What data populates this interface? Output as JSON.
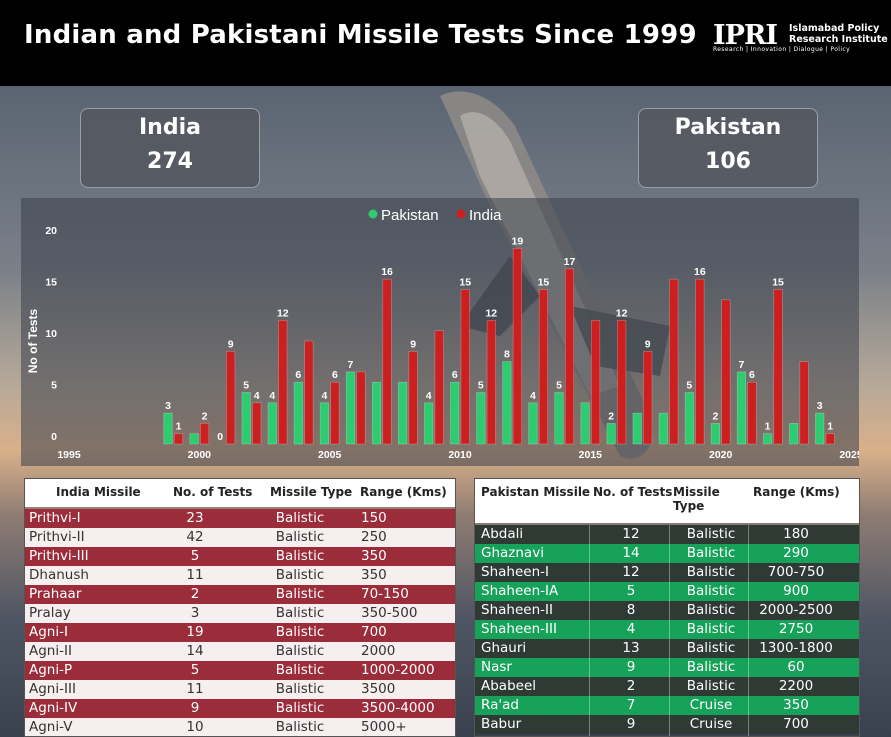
{
  "header": {
    "title": "Indian and Pakistani Missile Tests Since 1999",
    "logo_mark": "IPRI",
    "logo_name": "Islamabad Policy\nResearch Institute",
    "logo_tagline": "Research | Innovation | Dialogue | Policy"
  },
  "kpis": {
    "india": {
      "label": "India",
      "value": "274"
    },
    "pakistan": {
      "label": "Pakistan",
      "value": "106"
    }
  },
  "colors": {
    "pakistan": "#2ecc71",
    "india": "#cc1f1f",
    "india_row": "#9b2d3b",
    "pakistan_row": "#17a25a"
  },
  "chart_data": {
    "type": "bar",
    "title": "",
    "ylabel": "No of Tests",
    "xlabel": "",
    "x_ticks": [
      "1995",
      "2000",
      "2005",
      "2010",
      "2015",
      "2020",
      "2025"
    ],
    "y_ticks": [
      "0",
      "5",
      "10",
      "15",
      "20"
    ],
    "ylim": [
      0,
      20
    ],
    "xlim": [
      1995,
      2025
    ],
    "legend": "top-center",
    "years": [
      1999,
      2000,
      2001,
      2002,
      2003,
      2004,
      2005,
      2006,
      2007,
      2008,
      2009,
      2010,
      2011,
      2012,
      2013,
      2014,
      2015,
      2016,
      2017,
      2018,
      2019,
      2020,
      2021,
      2022,
      2023,
      2024
    ],
    "series": [
      {
        "name": "Pakistan",
        "values": [
          3,
          1,
          0,
          5,
          4,
          6,
          4,
          7,
          6,
          6,
          4,
          6,
          5,
          8,
          4,
          5,
          4,
          2,
          3,
          3,
          5,
          2,
          7,
          1,
          2,
          3
        ],
        "labels": [
          "3",
          "",
          "0",
          "5",
          "4",
          "6",
          "4",
          "7",
          "",
          "",
          "4",
          "6",
          "5",
          "8",
          "4",
          "5",
          "",
          "2",
          "",
          "",
          "5",
          "2",
          "7",
          "1",
          "",
          "3"
        ]
      },
      {
        "name": "India",
        "values": [
          1,
          2,
          9,
          4,
          12,
          10,
          6,
          7,
          16,
          9,
          11,
          15,
          12,
          19,
          15,
          17,
          12,
          12,
          9,
          16,
          16,
          14,
          6,
          15,
          8,
          1
        ],
        "labels": [
          "1",
          "2",
          "9",
          "4",
          "12",
          "",
          "6",
          "",
          "16",
          "9",
          "",
          "15",
          "12",
          "19",
          "15",
          "17",
          "",
          "12",
          "9",
          "",
          "16",
          "",
          "6",
          "15",
          "",
          "1"
        ]
      }
    ]
  },
  "india_table": {
    "headers": [
      "India Missile",
      "No. of Tests",
      "Missile Type",
      "Range (Kms)"
    ],
    "rows": [
      [
        "Prithvi-I",
        "23",
        "Balistic",
        "150"
      ],
      [
        "Prithvi-II",
        "42",
        "Balistic",
        "250"
      ],
      [
        "Prithvi-III",
        "5",
        "Balistic",
        "350"
      ],
      [
        "Dhanush",
        "11",
        "Balistic",
        "350"
      ],
      [
        "Prahaar",
        "2",
        "Balistic",
        "70-150"
      ],
      [
        "Pralay",
        "3",
        "Balistic",
        "350-500"
      ],
      [
        "Agni-I",
        "19",
        "Balistic",
        "700"
      ],
      [
        "Agni-II",
        "14",
        "Balistic",
        "2000"
      ],
      [
        "Agni-P",
        "5",
        "Balistic",
        "1000-2000"
      ],
      [
        "Agni-III",
        "11",
        "Balistic",
        "3500"
      ],
      [
        "Agni-IV",
        "9",
        "Balistic",
        "3500-4000"
      ],
      [
        "Agni-V",
        "10",
        "Balistic",
        "5000+"
      ]
    ]
  },
  "pakistan_table": {
    "headers": [
      "Pakistan Missile",
      "No. of Tests",
      "Missile Type",
      "Range (Kms)"
    ],
    "rows": [
      [
        "Abdali",
        "12",
        "Balistic",
        "180"
      ],
      [
        "Ghaznavi",
        "14",
        "Balistic",
        "290"
      ],
      [
        "Shaheen-I",
        "12",
        "Balistic",
        "700-750"
      ],
      [
        "Shaheen-IA",
        "5",
        "Balistic",
        "900"
      ],
      [
        "Shaheen-II",
        "8",
        "Balistic",
        "2000-2500"
      ],
      [
        "Shaheen-III",
        "4",
        "Balistic",
        "2750"
      ],
      [
        "Ghauri",
        "13",
        "Balistic",
        "1300-1800"
      ],
      [
        "Nasr",
        "9",
        "Balistic",
        "60"
      ],
      [
        "Ababeel",
        "2",
        "Balistic",
        "2200"
      ],
      [
        "Ra'ad",
        "7",
        "Cruise",
        "350"
      ],
      [
        "Babur",
        "9",
        "Cruise",
        "700"
      ]
    ]
  }
}
